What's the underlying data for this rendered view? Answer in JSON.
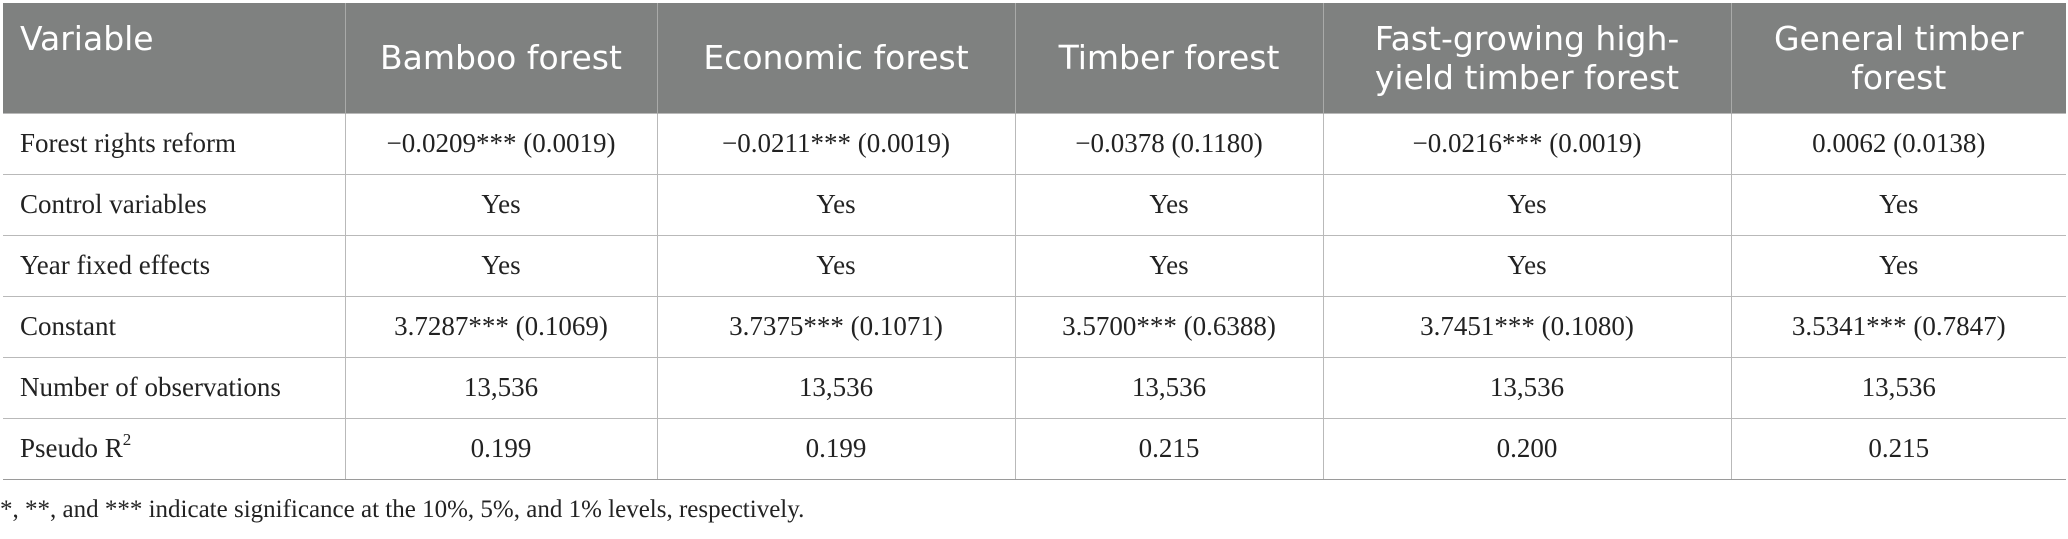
{
  "table": {
    "headers": [
      "Variable",
      "Bamboo forest",
      "Economic forest",
      "Timber forest",
      "Fast-growing high-yield timber forest",
      "General timber forest"
    ],
    "header_lines": {
      "fast_growing_line1": "Fast-growing high-",
      "fast_growing_line2": "yield timber forest",
      "general_line1": "General timber",
      "general_line2": "forest"
    },
    "rows": [
      {
        "label": "Forest rights reform",
        "values": [
          "−0.0209*** (0.0019)",
          "−0.0211*** (0.0019)",
          "−0.0378 (0.1180)",
          "−0.0216*** (0.0019)",
          "0.0062 (0.0138)"
        ]
      },
      {
        "label": "Control variables",
        "values": [
          "Yes",
          "Yes",
          "Yes",
          "Yes",
          "Yes"
        ]
      },
      {
        "label": "Year fixed effects",
        "values": [
          "Yes",
          "Yes",
          "Yes",
          "Yes",
          "Yes"
        ]
      },
      {
        "label": "Constant",
        "values": [
          "3.7287*** (0.1069)",
          "3.7375*** (0.1071)",
          "3.5700*** (0.6388)",
          "3.7451*** (0.1080)",
          "3.5341*** (0.7847)"
        ]
      },
      {
        "label": "Number of observations",
        "values": [
          "13,536",
          "13,536",
          "13,536",
          "13,536",
          "13,536"
        ]
      },
      {
        "label": "Pseudo R",
        "label_sup": "2",
        "values": [
          "0.199",
          "0.199",
          "0.215",
          "0.200",
          "0.215"
        ]
      }
    ]
  },
  "footnote": "*, **, and *** indicate significance at the 10%, 5%, and 1% levels, respectively."
}
